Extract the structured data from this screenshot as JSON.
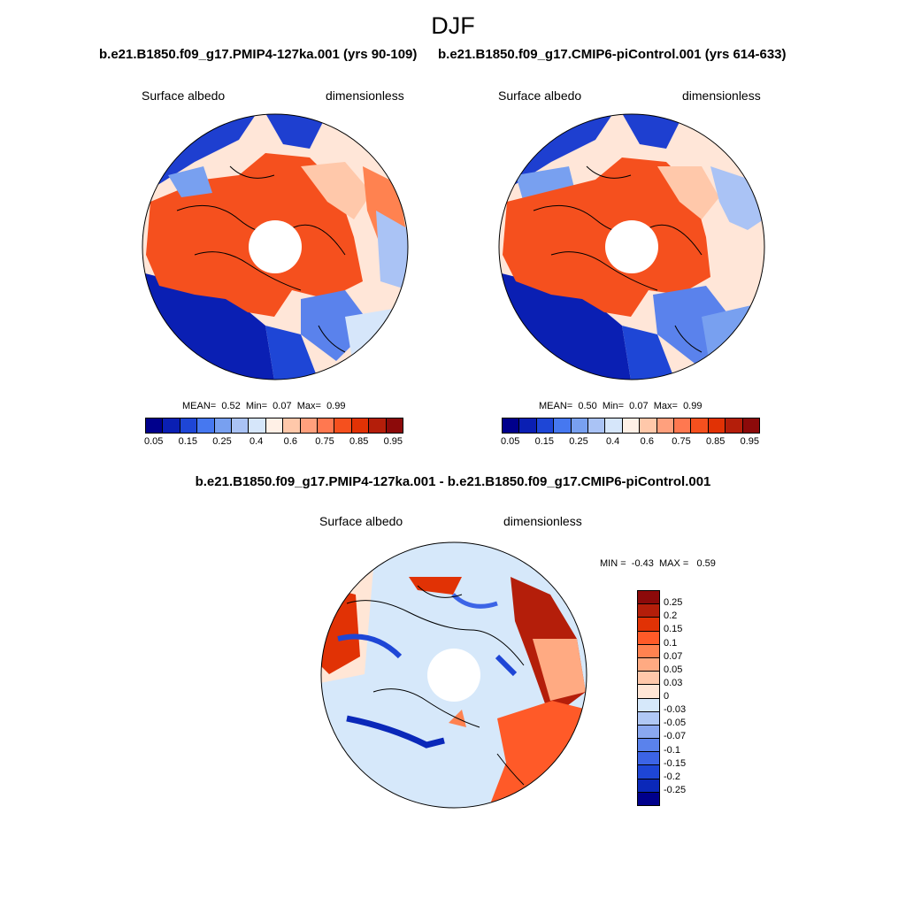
{
  "season": "DJF",
  "panels": [
    {
      "title": "b.e21.B1850.f09_g17.PMIP4-127ka.001 (yrs 90-109)",
      "variable": "Surface albedo",
      "units": "dimensionless",
      "stats": {
        "mean": "0.52",
        "min": "0.07",
        "max": "0.99"
      }
    },
    {
      "title": "b.e21.B1850.f09_g17.CMIP6-piControl.001 (yrs 614-633)",
      "variable": "Surface albedo",
      "units": "dimensionless",
      "stats": {
        "mean": "0.50",
        "min": "0.07",
        "max": "0.99"
      }
    }
  ],
  "stat_labels": {
    "mean": "MEAN=",
    "min": "Min=",
    "max": "Max="
  },
  "abs_colorbar": {
    "colors": [
      "#00008c",
      "#0a1fb3",
      "#1e46d6",
      "#4678f0",
      "#78a0f0",
      "#aac3f5",
      "#d6e6fa",
      "#fff0e6",
      "#ffc8aa",
      "#ffa07d",
      "#ff7850",
      "#f5501e",
      "#e13205",
      "#b41e0a",
      "#8c0a0a"
    ],
    "ticks": [
      "0.05",
      "0.15",
      "0.25",
      "0.4",
      "0.6",
      "0.75",
      "0.85",
      "0.95"
    ]
  },
  "diff": {
    "title": "b.e21.B1850.f09_g17.PMIP4-127ka.001 - b.e21.B1850.f09_g17.CMIP6-piControl.001",
    "variable": "Surface albedo",
    "units": "dimensionless",
    "min_label": "MIN =",
    "min": "-0.43",
    "max_label": "MAX =",
    "max": "0.59",
    "colorbar": {
      "colors": [
        "#8c0a0a",
        "#b41e0a",
        "#e13205",
        "#ff5a28",
        "#ff8250",
        "#ffaa82",
        "#ffc8aa",
        "#ffe6d6",
        "#d6e8fa",
        "#b0c8f5",
        "#8aa8f0",
        "#5a82ec",
        "#3c64e6",
        "#1e46d6",
        "#0a28b9",
        "#00008c"
      ],
      "ticks": [
        "0.25",
        "0.2",
        "0.15",
        "0.1",
        "0.07",
        "0.05",
        "0.03",
        "0",
        "-0.03",
        "-0.05",
        "-0.07",
        "-0.1",
        "-0.15",
        "-0.2",
        "-0.25"
      ]
    }
  }
}
